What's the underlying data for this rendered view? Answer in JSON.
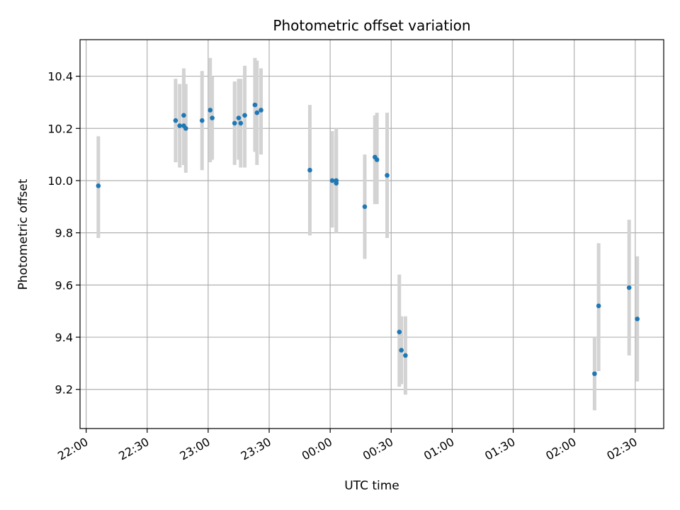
{
  "chart_data": {
    "type": "scatter",
    "title": "Photometric offset variation",
    "xlabel": "UTC time",
    "ylabel": "Photometric offset",
    "xlim": [
      "21:57",
      "02:44"
    ],
    "ylim": [
      9.05,
      10.54
    ],
    "grid": true,
    "x_ticks": [
      "22:00",
      "22:30",
      "23:00",
      "23:30",
      "00:00",
      "00:30",
      "01:00",
      "01:30",
      "02:00",
      "02:30"
    ],
    "y_ticks": [
      "9.2",
      "9.4",
      "9.6",
      "9.8",
      "10.0",
      "10.2",
      "10.4"
    ],
    "colors": {
      "point": "#1f77b4",
      "errorbar": "#d3d3d3",
      "grid": "#b0b0b0"
    },
    "points": [
      {
        "t": "22:06",
        "y": 9.98,
        "lo": 9.78,
        "hi": 10.17
      },
      {
        "t": "22:44",
        "y": 10.23,
        "lo": 10.07,
        "hi": 10.39
      },
      {
        "t": "22:46",
        "y": 10.21,
        "lo": 10.05,
        "hi": 10.37
      },
      {
        "t": "22:48",
        "y": 10.25,
        "lo": 10.06,
        "hi": 10.43
      },
      {
        "t": "22:48",
        "y": 10.21,
        "lo": 10.06,
        "hi": 10.39
      },
      {
        "t": "22:49",
        "y": 10.2,
        "lo": 10.03,
        "hi": 10.37
      },
      {
        "t": "22:57",
        "y": 10.23,
        "lo": 10.04,
        "hi": 10.42
      },
      {
        "t": "23:01",
        "y": 10.27,
        "lo": 10.07,
        "hi": 10.47
      },
      {
        "t": "23:02",
        "y": 10.24,
        "lo": 10.08,
        "hi": 10.4
      },
      {
        "t": "23:13",
        "y": 10.22,
        "lo": 10.06,
        "hi": 10.38
      },
      {
        "t": "23:15",
        "y": 10.24,
        "lo": 10.08,
        "hi": 10.39
      },
      {
        "t": "23:16",
        "y": 10.22,
        "lo": 10.05,
        "hi": 10.39
      },
      {
        "t": "23:18",
        "y": 10.25,
        "lo": 10.05,
        "hi": 10.44
      },
      {
        "t": "23:23",
        "y": 10.29,
        "lo": 10.11,
        "hi": 10.47
      },
      {
        "t": "23:24",
        "y": 10.26,
        "lo": 10.06,
        "hi": 10.46
      },
      {
        "t": "23:26",
        "y": 10.27,
        "lo": 10.1,
        "hi": 10.43
      },
      {
        "t": "23:50",
        "y": 10.04,
        "lo": 9.79,
        "hi": 10.29
      },
      {
        "t": "00:01",
        "y": 10.0,
        "lo": 9.82,
        "hi": 10.19
      },
      {
        "t": "00:03",
        "y": 9.99,
        "lo": 9.8,
        "hi": 10.17
      },
      {
        "t": "00:03",
        "y": 10.0,
        "lo": 9.8,
        "hi": 10.2
      },
      {
        "t": "00:17",
        "y": 9.9,
        "lo": 9.7,
        "hi": 10.1
      },
      {
        "t": "00:22",
        "y": 10.09,
        "lo": 9.91,
        "hi": 10.25
      },
      {
        "t": "00:23",
        "y": 10.08,
        "lo": 9.91,
        "hi": 10.26
      },
      {
        "t": "00:28",
        "y": 10.02,
        "lo": 9.78,
        "hi": 10.26
      },
      {
        "t": "00:34",
        "y": 9.42,
        "lo": 9.21,
        "hi": 9.64
      },
      {
        "t": "00:35",
        "y": 9.35,
        "lo": 9.22,
        "hi": 9.48
      },
      {
        "t": "00:37",
        "y": 9.33,
        "lo": 9.18,
        "hi": 9.48
      },
      {
        "t": "02:10",
        "y": 9.26,
        "lo": 9.12,
        "hi": 9.4
      },
      {
        "t": "02:12",
        "y": 9.52,
        "lo": 9.27,
        "hi": 9.76
      },
      {
        "t": "02:27",
        "y": 9.59,
        "lo": 9.33,
        "hi": 9.85
      },
      {
        "t": "02:31",
        "y": 9.47,
        "lo": 9.23,
        "hi": 9.71
      }
    ]
  }
}
